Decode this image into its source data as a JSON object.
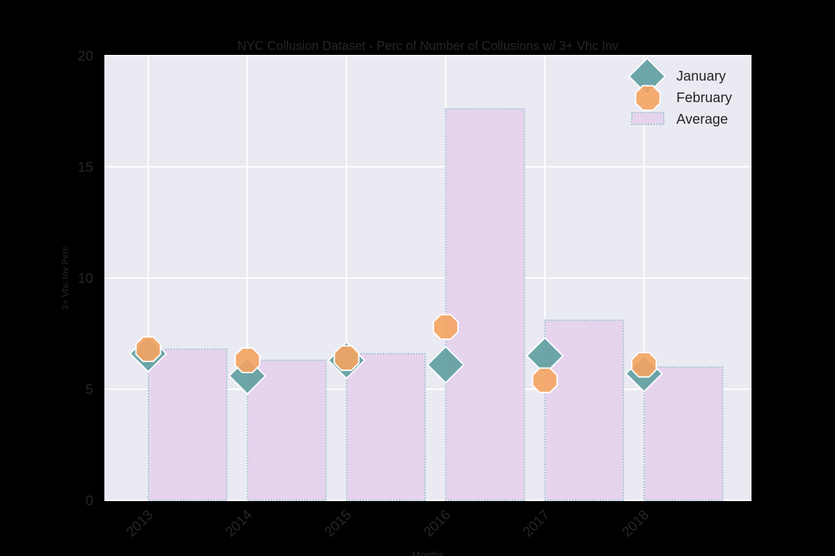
{
  "chart_data": {
    "type": "bar",
    "title": "NYC Collusion Dataset - Perc of Number of Collusions w/ 3+ Vhc Inv",
    "xlabel": "Months",
    "ylabel": "3+ Vhc Inv Perc",
    "categories": [
      "2013",
      "2014",
      "2015",
      "2016",
      "2017",
      "2018"
    ],
    "ylim": [
      0,
      20
    ],
    "yticks": [
      "0",
      "5",
      "10",
      "15",
      "20"
    ],
    "grid": true,
    "legend_position": "top-right",
    "series": [
      {
        "name": "January",
        "kind": "scatter",
        "marker": "diamond",
        "values": [
          6.6,
          5.6,
          6.3,
          6.1,
          6.5,
          5.7
        ]
      },
      {
        "name": "February",
        "kind": "scatter",
        "marker": "octagon",
        "values": [
          6.8,
          6.3,
          6.4,
          7.8,
          5.4,
          6.1
        ]
      },
      {
        "name": "Average",
        "kind": "bar",
        "values": [
          6.8,
          6.3,
          6.6,
          17.6,
          8.1,
          6.0
        ]
      }
    ]
  },
  "colors": {
    "background": "#000000",
    "plot_background": "#eaeaf2",
    "grid": "#ffffff",
    "text": "#262626",
    "january": "#5f9ea0",
    "february": "#f4a460",
    "average_fill": "#e6d3ee",
    "average_edge": "#9ec6d0"
  }
}
